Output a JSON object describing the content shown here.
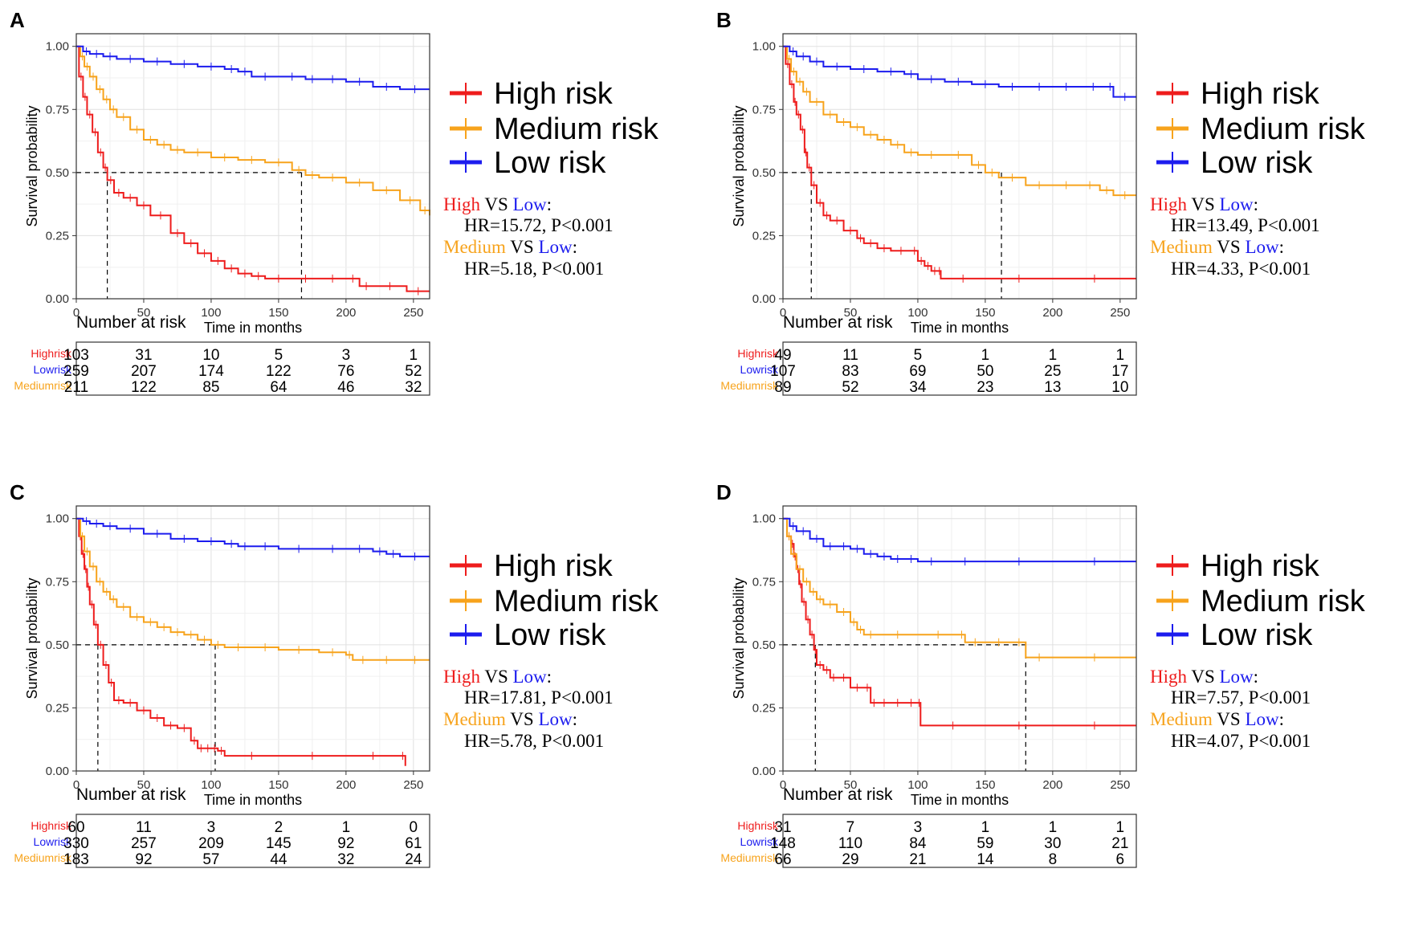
{
  "chart_data": [
    {
      "type": "line",
      "panel": "A",
      "ylabel": "Survival probability",
      "xlabel": "Time in months",
      "xticks": [
        "0",
        "50",
        "100",
        "150",
        "200",
        "250"
      ],
      "yticks": [
        "0.00",
        "0.25",
        "0.50",
        "0.75",
        "1.00"
      ],
      "xlim": [
        0,
        262
      ],
      "ylim": [
        0,
        1.05
      ],
      "legend": [
        "High risk",
        "Medium risk",
        "Low risk"
      ],
      "series": [
        {
          "name": "High risk",
          "color": "#ee1c1c",
          "x": [
            0,
            2,
            5,
            8,
            12,
            16,
            20,
            23,
            28,
            35,
            45,
            55,
            70,
            80,
            90,
            100,
            110,
            120,
            130,
            140,
            160,
            180,
            200,
            210,
            220,
            245,
            262
          ],
          "y": [
            1,
            0.88,
            0.8,
            0.73,
            0.66,
            0.58,
            0.52,
            0.47,
            0.42,
            0.4,
            0.37,
            0.33,
            0.26,
            0.22,
            0.18,
            0.15,
            0.12,
            0.1,
            0.09,
            0.08,
            0.08,
            0.08,
            0.08,
            0.05,
            0.05,
            0.03,
            0.03
          ]
        },
        {
          "name": "Medium risk",
          "color": "#f7a31c",
          "x": [
            0,
            3,
            6,
            10,
            15,
            20,
            25,
            30,
            40,
            50,
            60,
            70,
            80,
            100,
            120,
            140,
            160,
            170,
            180,
            200,
            220,
            240,
            255,
            262
          ],
          "y": [
            1,
            0.96,
            0.92,
            0.88,
            0.83,
            0.79,
            0.75,
            0.72,
            0.67,
            0.63,
            0.61,
            0.59,
            0.58,
            0.56,
            0.55,
            0.54,
            0.51,
            0.49,
            0.48,
            0.46,
            0.43,
            0.39,
            0.35,
            0.33
          ]
        },
        {
          "name": "Low risk",
          "color": "#1c1cee",
          "x": [
            0,
            5,
            10,
            20,
            30,
            50,
            70,
            90,
            110,
            120,
            130,
            150,
            170,
            180,
            200,
            220,
            240,
            262
          ],
          "y": [
            1,
            0.98,
            0.97,
            0.96,
            0.95,
            0.94,
            0.93,
            0.92,
            0.91,
            0.9,
            0.88,
            0.88,
            0.87,
            0.87,
            0.86,
            0.84,
            0.83,
            0.83
          ]
        }
      ],
      "median_lines": [
        23,
        167
      ],
      "hr_text": [
        {
          "a": "High",
          "b": " VS ",
          "c": "Low",
          ":": ":",
          "hr": "HR=15.72, P<0.001"
        },
        {
          "a": "Medium",
          "b": " VS ",
          "c": "Low",
          ":": ":",
          "hr": "HR=5.18, P<0.001"
        }
      ],
      "risk_table": {
        "title": "Number at risk",
        "rows": [
          {
            "label": "Highrisk",
            "color": "#ee1c1c",
            "values": [
              "103",
              "31",
              "10",
              "5",
              "3",
              "1"
            ]
          },
          {
            "label": "Lowrisk",
            "color": "#1c1cee",
            "values": [
              "259",
              "207",
              "174",
              "122",
              "76",
              "52"
            ]
          },
          {
            "label": "Mediumrisk",
            "color": "#f7a31c",
            "values": [
              "211",
              "122",
              "85",
              "64",
              "46",
              "32"
            ]
          }
        ]
      }
    },
    {
      "type": "line",
      "panel": "B",
      "ylabel": "Survival probability",
      "xlabel": "Time in months",
      "xticks": [
        "0",
        "50",
        "100",
        "150",
        "200",
        "250"
      ],
      "yticks": [
        "0.00",
        "0.25",
        "0.50",
        "0.75",
        "1.00"
      ],
      "xlim": [
        0,
        262
      ],
      "ylim": [
        0,
        1.05
      ],
      "legend": [
        "High risk",
        "Medium risk",
        "Low risk"
      ],
      "series": [
        {
          "name": "High risk",
          "color": "#ee1c1c",
          "x": [
            0,
            2,
            5,
            8,
            10,
            13,
            16,
            18,
            21,
            25,
            30,
            35,
            45,
            55,
            60,
            70,
            80,
            95,
            100,
            105,
            110,
            115,
            117,
            150,
            200,
            262
          ],
          "y": [
            1,
            0.93,
            0.85,
            0.78,
            0.73,
            0.67,
            0.58,
            0.52,
            0.45,
            0.38,
            0.33,
            0.31,
            0.27,
            0.24,
            0.22,
            0.2,
            0.19,
            0.19,
            0.15,
            0.13,
            0.11,
            0.11,
            0.08,
            0.08,
            0.08,
            0.08
          ]
        },
        {
          "name": "Medium risk",
          "color": "#f7a31c",
          "x": [
            0,
            3,
            6,
            10,
            15,
            20,
            30,
            40,
            50,
            60,
            70,
            80,
            90,
            100,
            120,
            140,
            150,
            160,
            180,
            200,
            220,
            235,
            245,
            262
          ],
          "y": [
            1,
            0.95,
            0.9,
            0.86,
            0.82,
            0.78,
            0.73,
            0.7,
            0.68,
            0.65,
            0.63,
            0.61,
            0.58,
            0.57,
            0.57,
            0.53,
            0.5,
            0.48,
            0.45,
            0.45,
            0.45,
            0.43,
            0.41,
            0.41
          ]
        },
        {
          "name": "Low risk",
          "color": "#1c1cee",
          "x": [
            0,
            5,
            10,
            20,
            30,
            50,
            70,
            90,
            100,
            120,
            140,
            160,
            180,
            200,
            220,
            240,
            245,
            262
          ],
          "y": [
            1,
            0.98,
            0.96,
            0.94,
            0.92,
            0.91,
            0.9,
            0.89,
            0.87,
            0.86,
            0.85,
            0.84,
            0.84,
            0.84,
            0.84,
            0.84,
            0.8,
            0.8
          ]
        }
      ],
      "median_lines": [
        21,
        162
      ],
      "hr_text": [
        {
          "a": "High",
          "b": " VS ",
          "c": "Low",
          ":": ":",
          "hr": "HR=13.49, P<0.001"
        },
        {
          "a": "Medium",
          "b": " VS ",
          "c": "Low",
          ":": ":",
          "hr": "HR=4.33, P<0.001"
        }
      ],
      "risk_table": {
        "title": "Number at risk",
        "rows": [
          {
            "label": "Highrisk",
            "color": "#ee1c1c",
            "values": [
              "49",
              "11",
              "5",
              "1",
              "1",
              "1"
            ]
          },
          {
            "label": "Lowrisk",
            "color": "#1c1cee",
            "values": [
              "107",
              "83",
              "69",
              "50",
              "25",
              "17"
            ]
          },
          {
            "label": "Mediumrisk",
            "color": "#f7a31c",
            "values": [
              "89",
              "52",
              "34",
              "23",
              "13",
              "10"
            ]
          }
        ]
      }
    },
    {
      "type": "line",
      "panel": "C",
      "ylabel": "Survival probability",
      "xlabel": "Time in months",
      "xticks": [
        "0",
        "50",
        "100",
        "150",
        "200",
        "250"
      ],
      "yticks": [
        "0.00",
        "0.25",
        "0.50",
        "0.75",
        "1.00"
      ],
      "xlim": [
        0,
        262
      ],
      "ylim": [
        0,
        1.05
      ],
      "legend": [
        "High risk",
        "Medium risk",
        "Low risk"
      ],
      "series": [
        {
          "name": "High risk",
          "color": "#ee1c1c",
          "x": [
            0,
            2,
            4,
            6,
            8,
            10,
            13,
            16,
            20,
            24,
            28,
            35,
            45,
            55,
            65,
            75,
            85,
            90,
            95,
            100,
            105,
            110,
            150,
            200,
            240,
            244
          ],
          "y": [
            1,
            0.93,
            0.86,
            0.8,
            0.73,
            0.66,
            0.58,
            0.5,
            0.42,
            0.35,
            0.28,
            0.27,
            0.24,
            0.21,
            0.18,
            0.17,
            0.12,
            0.09,
            0.09,
            0.09,
            0.08,
            0.06,
            0.06,
            0.06,
            0.06,
            0.02
          ]
        },
        {
          "name": "Medium risk",
          "color": "#f7a31c",
          "x": [
            0,
            3,
            6,
            10,
            15,
            20,
            25,
            30,
            40,
            50,
            60,
            70,
            80,
            90,
            100,
            110,
            130,
            150,
            180,
            200,
            205,
            220,
            240,
            262
          ],
          "y": [
            1,
            0.93,
            0.87,
            0.81,
            0.75,
            0.71,
            0.68,
            0.65,
            0.61,
            0.59,
            0.57,
            0.55,
            0.54,
            0.52,
            0.5,
            0.49,
            0.49,
            0.48,
            0.47,
            0.46,
            0.44,
            0.44,
            0.44,
            0.44
          ]
        },
        {
          "name": "Low risk",
          "color": "#1c1cee",
          "x": [
            0,
            5,
            10,
            20,
            30,
            50,
            70,
            90,
            110,
            120,
            130,
            150,
            180,
            200,
            220,
            230,
            240,
            262
          ],
          "y": [
            1,
            0.99,
            0.98,
            0.97,
            0.96,
            0.94,
            0.92,
            0.91,
            0.9,
            0.89,
            0.89,
            0.88,
            0.88,
            0.88,
            0.87,
            0.86,
            0.85,
            0.85
          ]
        }
      ],
      "median_lines": [
        16,
        103
      ],
      "hr_text": [
        {
          "a": "High",
          "b": " VS ",
          "c": "Low",
          ":": ":",
          "hr": "HR=17.81, P<0.001"
        },
        {
          "a": "Medium",
          "b": " VS ",
          "c": "Low",
          ":": ":",
          "hr": "HR=5.78, P<0.001"
        }
      ],
      "risk_table": {
        "title": "Number at risk",
        "rows": [
          {
            "label": "Highrisk",
            "color": "#ee1c1c",
            "values": [
              "60",
              "11",
              "3",
              "2",
              "1",
              "0"
            ]
          },
          {
            "label": "Lowrisk",
            "color": "#1c1cee",
            "values": [
              "330",
              "257",
              "209",
              "145",
              "92",
              "61"
            ]
          },
          {
            "label": "Mediumrisk",
            "color": "#f7a31c",
            "values": [
              "183",
              "92",
              "57",
              "44",
              "32",
              "24"
            ]
          }
        ]
      }
    },
    {
      "type": "line",
      "panel": "D",
      "ylabel": "Survival probability",
      "xlabel": "Time in months",
      "xticks": [
        "0",
        "50",
        "100",
        "150",
        "200",
        "250"
      ],
      "yticks": [
        "0.00",
        "0.25",
        "0.50",
        "0.75",
        "1.00"
      ],
      "xlim": [
        0,
        262
      ],
      "ylim": [
        0,
        1.05
      ],
      "legend": [
        "High risk",
        "Medium risk",
        "Low risk"
      ],
      "series": [
        {
          "name": "High risk",
          "color": "#ee1c1c",
          "x": [
            0,
            3,
            6,
            8,
            10,
            12,
            14,
            17,
            20,
            23,
            25,
            30,
            35,
            40,
            50,
            60,
            65,
            70,
            80,
            90,
            100,
            102,
            150,
            200,
            262
          ],
          "y": [
            1,
            0.93,
            0.9,
            0.85,
            0.8,
            0.74,
            0.67,
            0.6,
            0.54,
            0.48,
            0.42,
            0.4,
            0.37,
            0.37,
            0.33,
            0.33,
            0.27,
            0.27,
            0.27,
            0.27,
            0.27,
            0.18,
            0.18,
            0.18,
            0.18
          ]
        },
        {
          "name": "Medium risk",
          "color": "#f7a31c",
          "x": [
            0,
            3,
            6,
            10,
            15,
            20,
            25,
            30,
            40,
            50,
            55,
            60,
            70,
            100,
            130,
            135,
            150,
            170,
            180,
            200,
            262
          ],
          "y": [
            1,
            0.93,
            0.86,
            0.8,
            0.75,
            0.71,
            0.68,
            0.66,
            0.63,
            0.59,
            0.56,
            0.54,
            0.54,
            0.54,
            0.54,
            0.51,
            0.51,
            0.51,
            0.45,
            0.45,
            0.45
          ]
        },
        {
          "name": "Low risk",
          "color": "#1c1cee",
          "x": [
            0,
            5,
            10,
            20,
            30,
            40,
            50,
            60,
            70,
            80,
            90,
            100,
            120,
            150,
            200,
            262
          ],
          "y": [
            1,
            0.97,
            0.95,
            0.92,
            0.89,
            0.89,
            0.88,
            0.86,
            0.85,
            0.84,
            0.84,
            0.83,
            0.83,
            0.83,
            0.83,
            0.83
          ]
        }
      ],
      "median_lines": [
        24,
        180
      ],
      "hr_text": [
        {
          "a": "High",
          "b": " VS ",
          "c": "Low",
          ":": ":",
          "hr": "HR=7.57, P<0.001"
        },
        {
          "a": "Medium",
          "b": " VS ",
          "c": "Low",
          ":": ":",
          "hr": "HR=4.07, P<0.001"
        }
      ],
      "risk_table": {
        "title": "Number at risk",
        "rows": [
          {
            "label": "Highrisk",
            "color": "#ee1c1c",
            "values": [
              "31",
              "7",
              "3",
              "1",
              "1",
              "1"
            ]
          },
          {
            "label": "Lowrisk",
            "color": "#1c1cee",
            "values": [
              "148",
              "110",
              "84",
              "59",
              "30",
              "21"
            ]
          },
          {
            "label": "Mediumrisk",
            "color": "#f7a31c",
            "values": [
              "66",
              "29",
              "21",
              "14",
              "8",
              "6"
            ]
          }
        ]
      }
    }
  ]
}
